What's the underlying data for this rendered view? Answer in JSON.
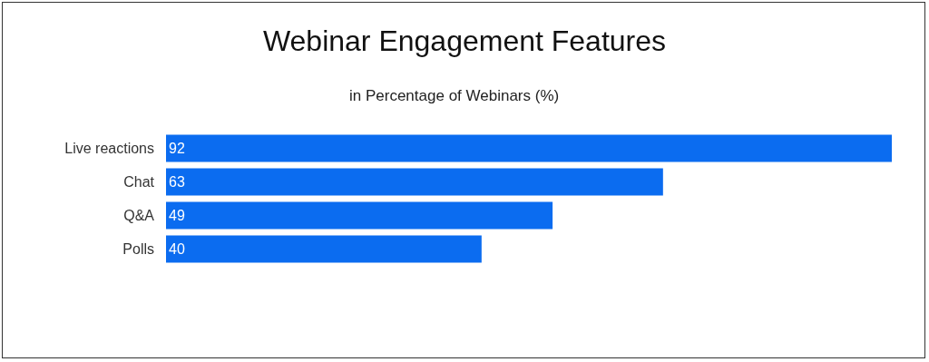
{
  "chart_data": {
    "type": "bar",
    "orientation": "horizontal",
    "title": "Webinar Engagement Features",
    "subtitle": "in Percentage of Webinars (%)",
    "categories": [
      "Live reactions",
      "Chat",
      "Q&A",
      "Polls"
    ],
    "values": [
      92,
      63,
      49,
      40
    ],
    "color": "#0b6cf0",
    "data_labels": true,
    "grid": false,
    "legend": false
  }
}
